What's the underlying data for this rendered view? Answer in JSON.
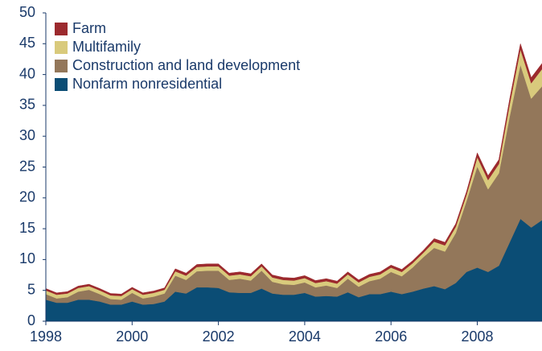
{
  "chart_data": {
    "type": "stacked_area",
    "x": [
      1998,
      1998.25,
      1998.5,
      1998.75,
      1999,
      1999.25,
      1999.5,
      1999.75,
      2000,
      2000.25,
      2000.5,
      2000.75,
      2001,
      2001.25,
      2001.5,
      2001.75,
      2002,
      2002.25,
      2002.5,
      2002.75,
      2003,
      2003.25,
      2003.5,
      2003.75,
      2004,
      2004.25,
      2004.5,
      2004.75,
      2005,
      2005.25,
      2005.5,
      2005.75,
      2006,
      2006.25,
      2006.5,
      2006.75,
      2007,
      2007.25,
      2007.5,
      2007.75,
      2008,
      2008.25,
      2008.5,
      2008.75,
      2009,
      2009.25,
      2009.5
    ],
    "series": [
      {
        "name": "Farm",
        "color": "#9c2a2e",
        "values": [
          0.3,
          0.3,
          0.3,
          0.3,
          0.3,
          0.3,
          0.3,
          0.3,
          0.3,
          0.3,
          0.3,
          0.3,
          0.4,
          0.4,
          0.4,
          0.4,
          0.4,
          0.4,
          0.4,
          0.4,
          0.4,
          0.4,
          0.4,
          0.4,
          0.4,
          0.4,
          0.4,
          0.4,
          0.4,
          0.4,
          0.4,
          0.4,
          0.4,
          0.4,
          0.4,
          0.4,
          0.5,
          0.5,
          0.5,
          0.5,
          0.7,
          0.7,
          0.7,
          0.8,
          0.9,
          0.9,
          0.9
        ]
      },
      {
        "name": "Multifamily",
        "color": "#d9ca7c",
        "values": [
          0.6,
          0.6,
          0.6,
          0.6,
          0.6,
          0.6,
          0.6,
          0.6,
          0.6,
          0.6,
          0.6,
          0.6,
          0.7,
          0.7,
          0.7,
          0.7,
          0.7,
          0.7,
          0.7,
          0.7,
          0.7,
          0.7,
          0.7,
          0.7,
          0.7,
          0.7,
          0.7,
          0.7,
          0.7,
          0.7,
          0.7,
          0.7,
          0.7,
          0.7,
          0.7,
          0.7,
          1.0,
          1.0,
          1.0,
          1.0,
          1.5,
          1.5,
          1.5,
          2.0,
          2.5,
          2.5,
          2.8
        ]
      },
      {
        "name": "Construction and land development",
        "color": "#93775a",
        "values": [
          0.9,
          0.7,
          0.9,
          1.3,
          1.6,
          1.2,
          0.9,
          0.8,
          1.4,
          1.0,
          1.2,
          1.3,
          2.6,
          2.2,
          2.6,
          2.7,
          2.8,
          2.0,
          2.3,
          2.0,
          2.9,
          1.9,
          1.7,
          1.6,
          1.7,
          1.5,
          1.7,
          1.4,
          2.2,
          1.7,
          2.1,
          2.5,
          3.2,
          2.9,
          3.9,
          5.1,
          6.2,
          6.1,
          8.1,
          11.5,
          16.4,
          13.4,
          15.0,
          20.4,
          25.0,
          20.9,
          21.7
        ]
      },
      {
        "name": "Nonfarm nonresidential",
        "color": "#0b4d75",
        "values": [
          3.5,
          3.0,
          3.0,
          3.5,
          3.5,
          3.2,
          2.7,
          2.7,
          3.2,
          2.7,
          2.8,
          3.2,
          4.8,
          4.5,
          5.5,
          5.5,
          5.4,
          4.7,
          4.6,
          4.6,
          5.3,
          4.5,
          4.3,
          4.3,
          4.6,
          4.0,
          4.1,
          4.0,
          4.7,
          3.9,
          4.4,
          4.4,
          4.8,
          4.4,
          4.8,
          5.3,
          5.7,
          5.2,
          6.2,
          8.0,
          8.7,
          8.0,
          9.0,
          12.8,
          16.6,
          15.2,
          16.4
        ]
      }
    ],
    "xlim": [
      1998,
      2009.5
    ],
    "xticks": [
      1998,
      2000,
      2002,
      2004,
      2006,
      2008
    ],
    "ylim": [
      0,
      50
    ],
    "yticks": [
      0,
      5,
      10,
      15,
      20,
      25,
      30,
      35,
      40,
      45,
      50
    ],
    "legend": "upper left"
  }
}
